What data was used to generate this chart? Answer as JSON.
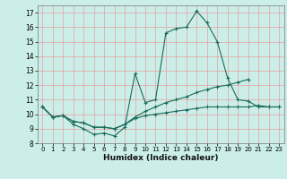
{
  "xlabel": "Humidex (Indice chaleur)",
  "background_color": "#cceee8",
  "grid_color": "#e8a0a0",
  "line_color": "#1a6b5a",
  "x_values": [
    0,
    1,
    2,
    3,
    4,
    5,
    6,
    7,
    8,
    9,
    10,
    11,
    12,
    13,
    14,
    15,
    16,
    17,
    18,
    19,
    20,
    21,
    22,
    23
  ],
  "line1": [
    10.5,
    9.8,
    9.9,
    9.3,
    9.0,
    8.6,
    8.7,
    8.5,
    9.1,
    12.8,
    10.8,
    11.0,
    15.6,
    15.9,
    16.0,
    17.1,
    16.3,
    15.0,
    12.5,
    11.0,
    10.9,
    10.5,
    10.5,
    10.5
  ],
  "line2": [
    10.5,
    9.8,
    9.9,
    9.5,
    9.4,
    9.1,
    9.1,
    9.0,
    9.3,
    9.8,
    10.2,
    10.5,
    10.8,
    11.0,
    11.2,
    11.5,
    11.7,
    11.9,
    12.0,
    12.2,
    12.4,
    null,
    null,
    null
  ],
  "line3": [
    10.5,
    9.8,
    9.9,
    9.5,
    9.4,
    9.1,
    9.1,
    9.0,
    9.3,
    9.7,
    9.9,
    10.0,
    10.1,
    10.2,
    10.3,
    10.4,
    10.5,
    10.5,
    10.5,
    10.5,
    10.5,
    10.6,
    10.5,
    10.5
  ],
  "xlim": [
    -0.5,
    23.5
  ],
  "ylim": [
    8,
    17.5
  ],
  "yticks": [
    8,
    9,
    10,
    11,
    12,
    13,
    14,
    15,
    16,
    17
  ],
  "xticks": [
    0,
    1,
    2,
    3,
    4,
    5,
    6,
    7,
    8,
    9,
    10,
    11,
    12,
    13,
    14,
    15,
    16,
    17,
    18,
    19,
    20,
    21,
    22,
    23
  ]
}
